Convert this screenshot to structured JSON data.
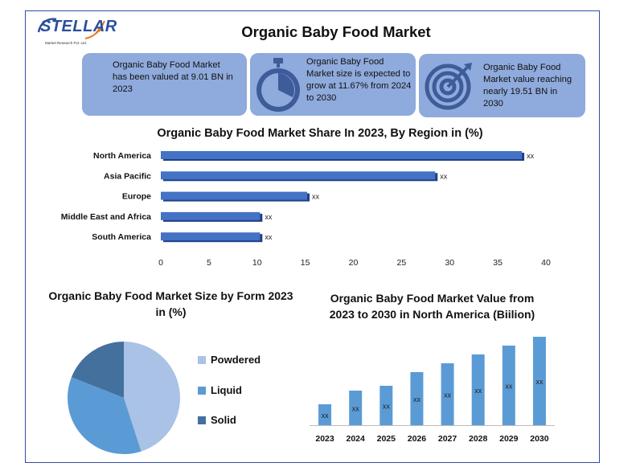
{
  "logo": {
    "name": "STELLAR",
    "subtitle": "Market Research Pvt. Ltd."
  },
  "title": "Organic Baby Food Market",
  "cards": [
    {
      "text": "Organic Baby Food Market has been valued at 9.01 BN in 2023",
      "icon": "none"
    },
    {
      "text": "Organic Baby Food Market size is expected to grow at 11.67% from 2024 to 2030",
      "icon": "stopwatch-icon"
    },
    {
      "text": "Organic Baby Food Market value reaching nearly 19.51 BN in 2030",
      "icon": "target-icon"
    }
  ],
  "colors": {
    "bar": "#4472c4",
    "card": "#8faadc",
    "powdered": "#a9c2e5",
    "liquid": "#5b9bd5",
    "solid": "#44709e"
  },
  "chart_data": [
    {
      "type": "bar",
      "orientation": "horizontal",
      "title": "Organic Baby Food Market Share In 2023, By Region in (%)",
      "categories": [
        "North America",
        "Asia Pacific",
        "Europe",
        "Middle East and Africa",
        "South America"
      ],
      "values": [
        37.5,
        28.5,
        15.2,
        10.3,
        10.3
      ],
      "data_labels": [
        "xx",
        "xx",
        "xx",
        "xx",
        "xx"
      ],
      "xticks": [
        "0",
        "5",
        "10",
        "15",
        "20",
        "25",
        "30",
        "35",
        "40"
      ],
      "xlim": [
        0,
        40
      ],
      "grid": false
    },
    {
      "type": "pie",
      "title": "Organic Baby Food Market Size by Form 2023 in (%)",
      "categories": [
        "Powdered",
        "Liquid",
        "Solid"
      ],
      "values": [
        45,
        36,
        19
      ],
      "legend": "right"
    },
    {
      "type": "bar",
      "title": "Organic Baby Food Market Value from 2023 to 2030 in North America (Biilion)",
      "categories": [
        "2023",
        "2024",
        "2025",
        "2026",
        "2027",
        "2028",
        "2029",
        "2030"
      ],
      "values": [
        2.6,
        4.3,
        4.9,
        6.6,
        7.7,
        8.8,
        9.9,
        11.0
      ],
      "data_labels": [
        "xx",
        "xx",
        "xx",
        "xx",
        "xx",
        "xx",
        "xx",
        "xx"
      ],
      "ylim": [
        0,
        12
      ],
      "grid": false
    }
  ]
}
